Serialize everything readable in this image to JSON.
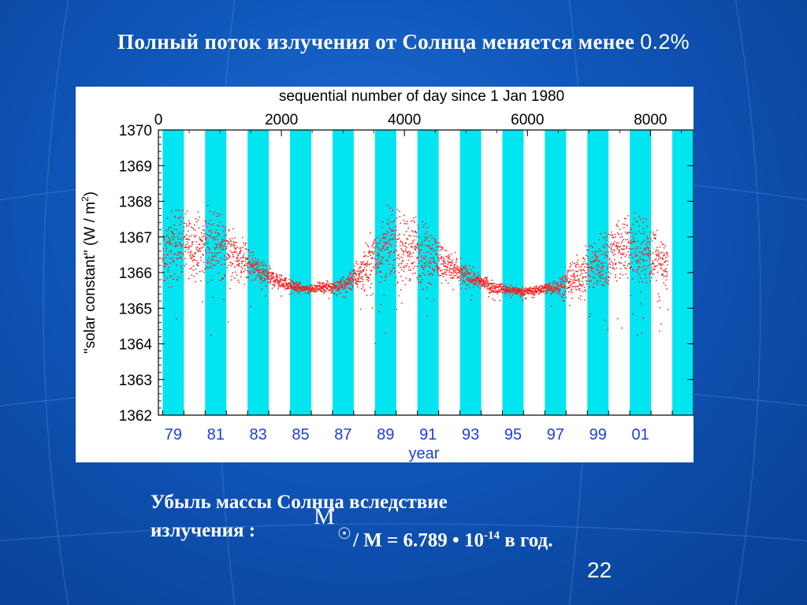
{
  "slide": {
    "title_text": "Полный поток излучения от Солнца меняется менее ",
    "title_value": "0.2%",
    "caption_line1": "Убыль массы Солнца вследствие",
    "caption_line2_lead": "излучения  :",
    "caption_symbol": "M",
    "caption_subscript": "☉",
    "caption_formula_text": "/ M = 6.789 • 10",
    "caption_exponent": "-14",
    "caption_tail": " в год.",
    "page_number": "22",
    "colors": {
      "background": "#0f55b8",
      "band": "#00e5f0",
      "points": "#ff1a1a",
      "bottom_axis": "#1f3fd8"
    }
  },
  "chart_data": {
    "type": "scatter",
    "top_axis_title": "sequential number of day since 1 Jan 1980",
    "top_axis_ticks": [
      0,
      2000,
      4000,
      6000,
      8000
    ],
    "top_axis_range": [
      0,
      8700
    ],
    "ylabel": "\"solar constant\" (W / m",
    "ylabel_exp": "2",
    "ylabel_close": ")",
    "ylim": [
      1362,
      1370
    ],
    "yticks": [
      1362,
      1363,
      1364,
      1365,
      1366,
      1367,
      1368,
      1369,
      1370
    ],
    "xlabel": "year",
    "xlim": [
      1978.8,
      2004.0
    ],
    "xtick_labels": [
      {
        "year": 1979.5,
        "label": "79"
      },
      {
        "year": 1981.5,
        "label": "81"
      },
      {
        "year": 1983.5,
        "label": "83"
      },
      {
        "year": 1985.5,
        "label": "85"
      },
      {
        "year": 1987.5,
        "label": "87"
      },
      {
        "year": 1989.5,
        "label": "89"
      },
      {
        "year": 1991.5,
        "label": "91"
      },
      {
        "year": 1993.5,
        "label": "93"
      },
      {
        "year": 1995.5,
        "label": "95"
      },
      {
        "year": 1997.5,
        "label": "97"
      },
      {
        "year": 1999.5,
        "label": "99"
      },
      {
        "year": 2001.5,
        "label": "01"
      }
    ],
    "bands_years": [
      1979,
      1981,
      1983,
      1985,
      1987,
      1989,
      1991,
      1993,
      1995,
      1997,
      1999,
      2001,
      2003
    ],
    "series": [
      {
        "values_year": [
          1979.0,
          1979.3,
          1979.6,
          1980.0,
          1980.4,
          1980.8,
          1981.2,
          1981.6,
          1982.0,
          1982.4,
          1982.8,
          1983.2,
          1983.6,
          1984.0,
          1984.5,
          1985.0,
          1985.5,
          1986.0,
          1986.5,
          1987.0,
          1987.5,
          1988.0,
          1988.4,
          1988.8,
          1989.2,
          1989.6,
          1990.0,
          1990.4,
          1990.8,
          1991.2,
          1991.6,
          1992.0,
          1992.4,
          1992.8,
          1993.2,
          1993.6,
          1994.0,
          1994.5,
          1995.0,
          1995.5,
          1996.0,
          1996.5,
          1997.0,
          1997.5,
          1998.0,
          1998.4,
          1998.8,
          1999.2,
          1999.6,
          2000.0,
          2000.4,
          2000.8,
          2001.2,
          2001.6,
          2002.0,
          2002.4,
          2002.8
        ],
        "values": [
          1366.3,
          1366.6,
          1366.8,
          1366.9,
          1366.8,
          1366.7,
          1366.9,
          1366.8,
          1366.7,
          1366.5,
          1366.3,
          1366.2,
          1366.0,
          1365.9,
          1365.75,
          1365.65,
          1365.55,
          1365.55,
          1365.6,
          1365.6,
          1365.65,
          1365.85,
          1366.05,
          1366.3,
          1366.6,
          1366.8,
          1366.7,
          1366.7,
          1366.6,
          1366.6,
          1366.5,
          1366.4,
          1366.2,
          1366.05,
          1365.95,
          1365.85,
          1365.75,
          1365.6,
          1365.55,
          1365.5,
          1365.45,
          1365.5,
          1365.55,
          1365.6,
          1365.7,
          1365.85,
          1366.0,
          1366.2,
          1366.3,
          1366.5,
          1366.6,
          1366.7,
          1366.7,
          1366.6,
          1366.5,
          1366.3,
          1366.2
        ],
        "scatter_amplitude": [
          0.9,
          0.9,
          0.9,
          0.9,
          0.8,
          0.8,
          0.9,
          0.9,
          0.8,
          0.7,
          0.6,
          0.4,
          0.3,
          0.25,
          0.2,
          0.15,
          0.12,
          0.12,
          0.12,
          0.15,
          0.2,
          0.35,
          0.5,
          0.7,
          0.9,
          0.9,
          0.9,
          0.9,
          0.9,
          0.9,
          0.8,
          0.6,
          0.45,
          0.35,
          0.3,
          0.25,
          0.2,
          0.15,
          0.12,
          0.12,
          0.12,
          0.12,
          0.15,
          0.2,
          0.35,
          0.5,
          0.6,
          0.7,
          0.8,
          0.9,
          0.9,
          0.9,
          0.9,
          0.9,
          0.8,
          0.7,
          0.6
        ]
      }
    ]
  }
}
